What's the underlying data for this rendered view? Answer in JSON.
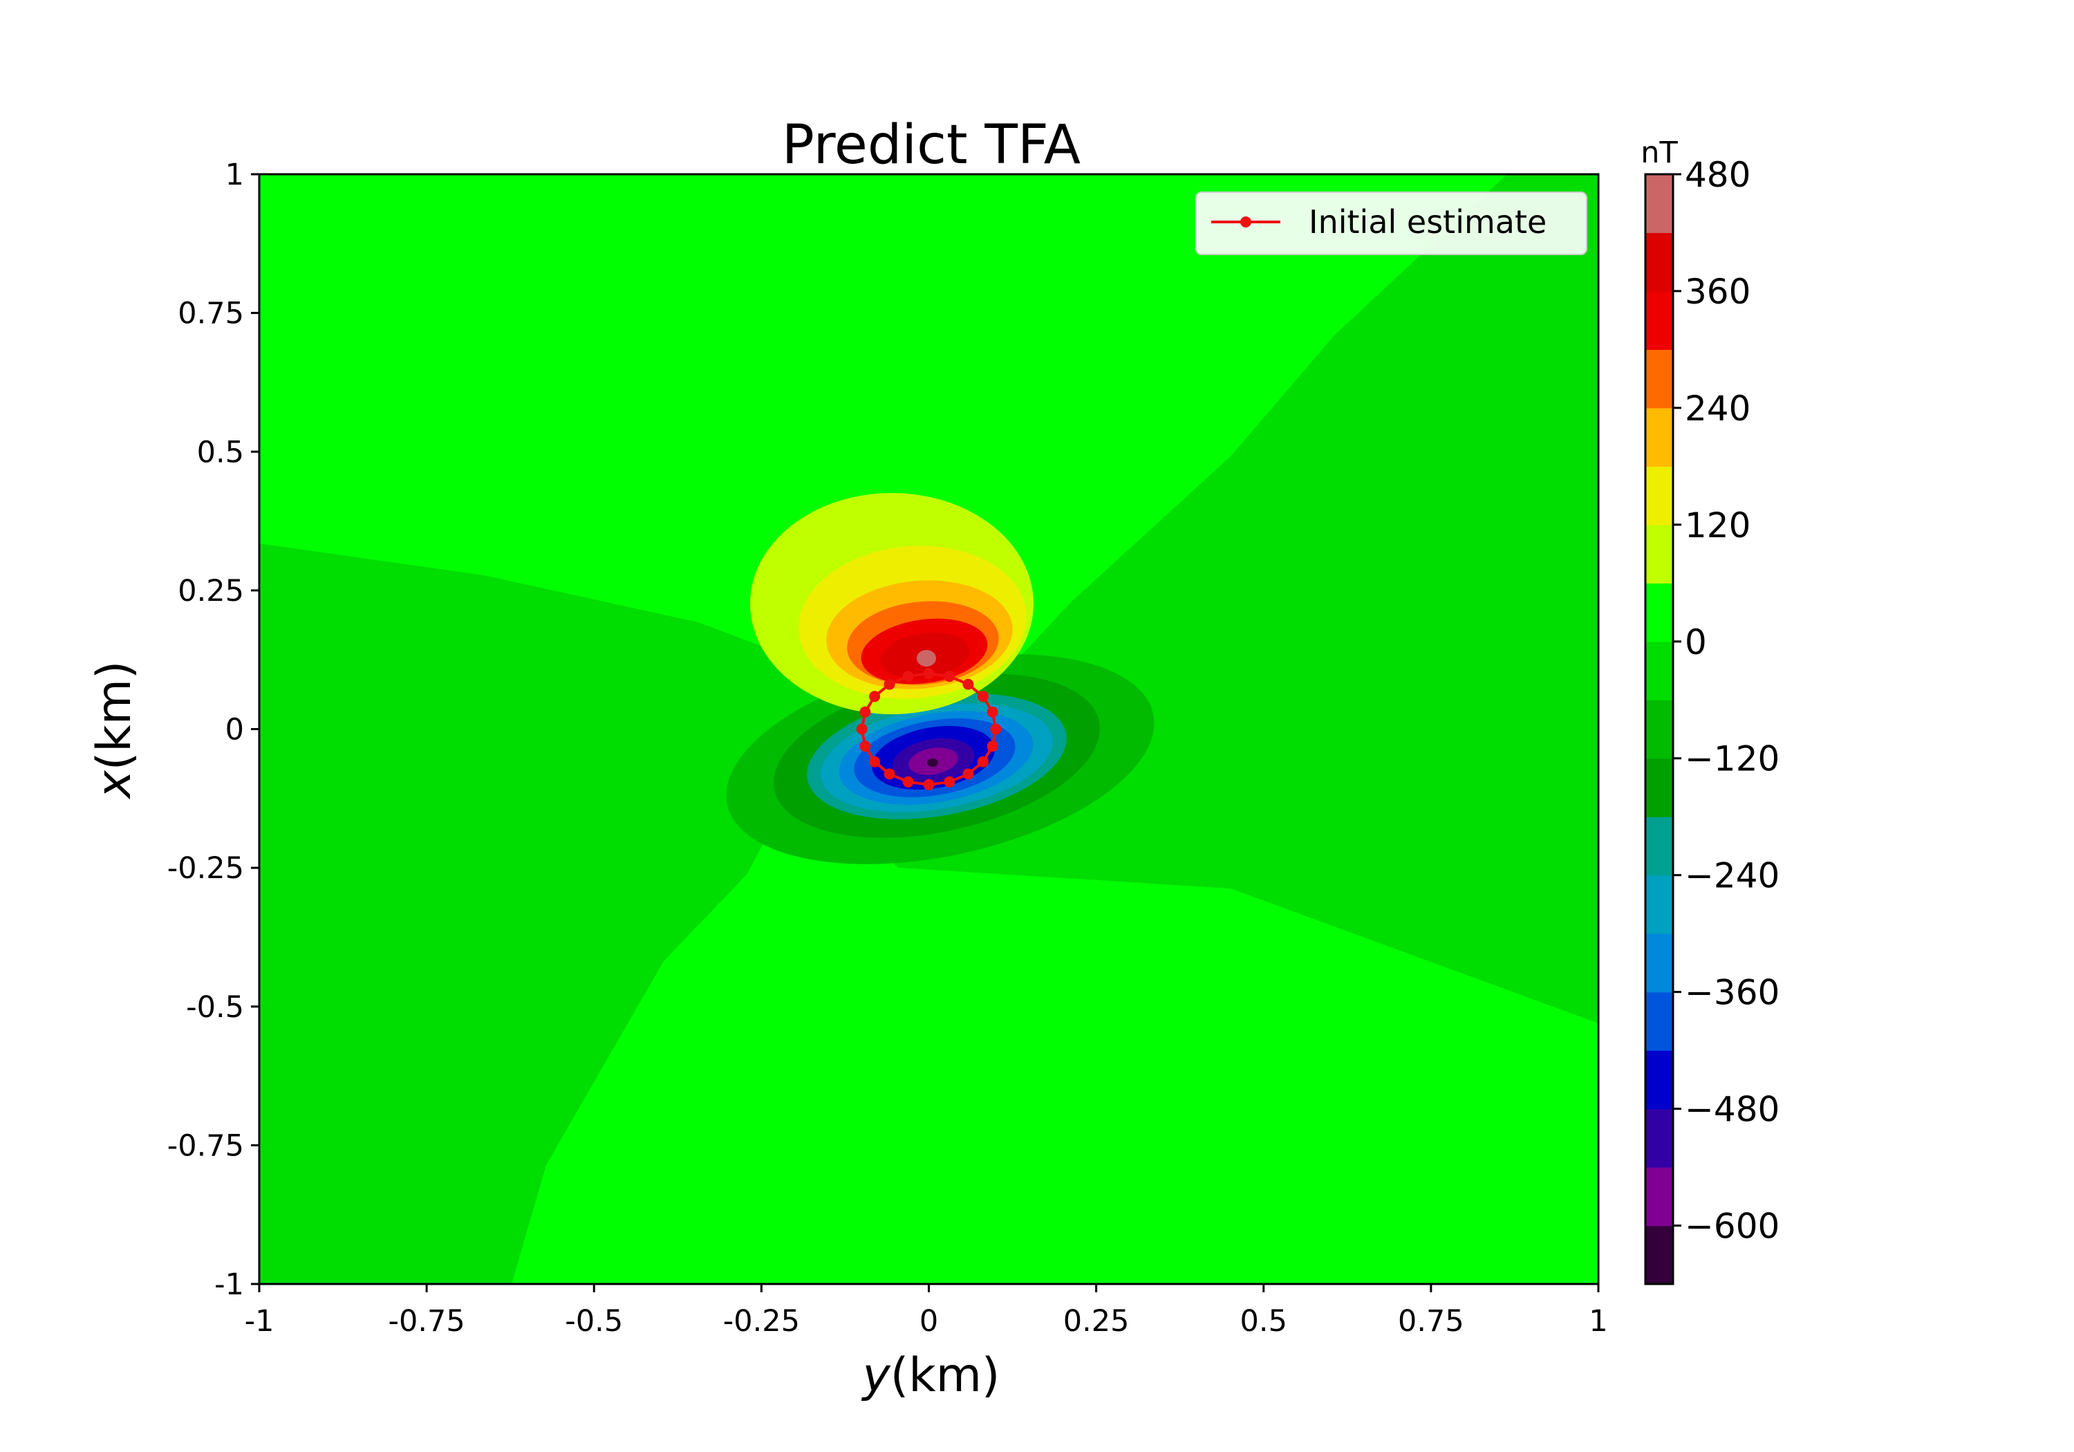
{
  "chart_data": {
    "type": "contourf",
    "title": "Predict TFA",
    "xlabel_var": "y",
    "xlabel_unit": "(km)",
    "ylabel_var": "x",
    "ylabel_unit": "(km)",
    "xlim": [
      -1,
      1
    ],
    "ylim": [
      -1,
      1
    ],
    "xticks": [
      -1,
      -0.75,
      -0.5,
      -0.25,
      0,
      0.25,
      0.5,
      0.75,
      1
    ],
    "xtick_labels": [
      "-1",
      "-0.75",
      "-0.5",
      "-0.25",
      "0",
      "0.25",
      "0.5",
      "0.75",
      "1"
    ],
    "yticks": [
      1,
      0.75,
      0.5,
      0.25,
      0,
      -0.25,
      -0.5,
      -0.75,
      -1
    ],
    "ytick_labels": [
      "1",
      "0.75",
      "0.5",
      "0.25",
      "0",
      "-0.25",
      "-0.5",
      "-0.75",
      "-1"
    ],
    "colorbar": {
      "unit": "nT",
      "vmin": -660,
      "vmax": 480,
      "levels": [
        -660,
        -600,
        -540,
        -480,
        -420,
        -360,
        -300,
        -240,
        -180,
        -120,
        -60,
        0,
        60,
        120,
        180,
        240,
        300,
        360,
        420,
        480
      ],
      "colors": [
        "#33003b",
        "#7f0092",
        "#3300a6",
        "#0000cc",
        "#0055dd",
        "#0088dd",
        "#00a0c0",
        "#00a090",
        "#00a000",
        "#00bb00",
        "#00dd00",
        "#00ff00",
        "#c0ff00",
        "#eeee00",
        "#ffbb00",
        "#ff6a00",
        "#ee0000",
        "#dd0000",
        "#cc6666"
      ],
      "tick_values": [
        480,
        360,
        240,
        120,
        0,
        -120,
        -240,
        -360,
        -480,
        -600
      ],
      "tick_labels": [
        "480",
        "360",
        "240",
        "120",
        "0",
        "−120",
        "−240",
        "−360",
        "−480",
        "−600"
      ]
    },
    "anomaly": {
      "dipole_axis": "x",
      "positive_peak": {
        "x": 0.13,
        "y": -0.01,
        "value": 470
      },
      "negative_peak": {
        "x": -0.06,
        "y": 0.0,
        "value": -650
      }
    },
    "series": [
      {
        "name": "Initial estimate",
        "color": "#ee1111",
        "marker": "circle",
        "center_y": 0.0,
        "center_x": 0.0,
        "radius_km": 0.1,
        "n_points": 20
      }
    ],
    "legend": {
      "position": "top-right",
      "entries": [
        "Initial estimate"
      ]
    }
  }
}
